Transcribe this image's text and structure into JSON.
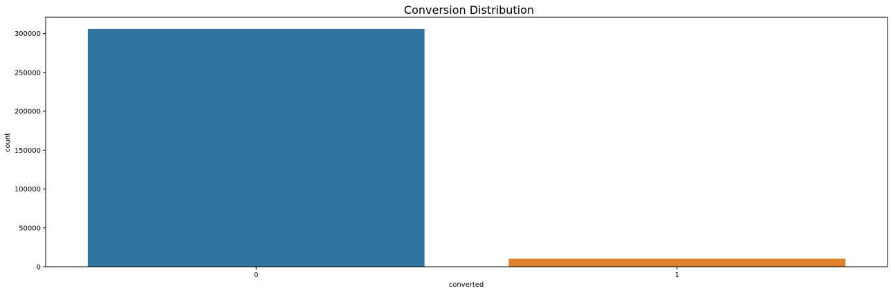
{
  "chart_data": {
    "type": "bar",
    "title": "Conversion Distribution",
    "xlabel": "converted",
    "ylabel": "count",
    "categories": [
      "0",
      "1"
    ],
    "values": [
      306000,
      10300
    ],
    "colors": [
      "#3274a1",
      "#e1812c"
    ],
    "ylim": [
      0,
      321000
    ],
    "yticks": [
      0,
      50000,
      100000,
      150000,
      200000,
      250000,
      300000
    ],
    "ytick_labels": [
      "0",
      "50000",
      "100000",
      "150000",
      "200000",
      "250000",
      "300000"
    ],
    "grid": false,
    "legend": "none"
  }
}
